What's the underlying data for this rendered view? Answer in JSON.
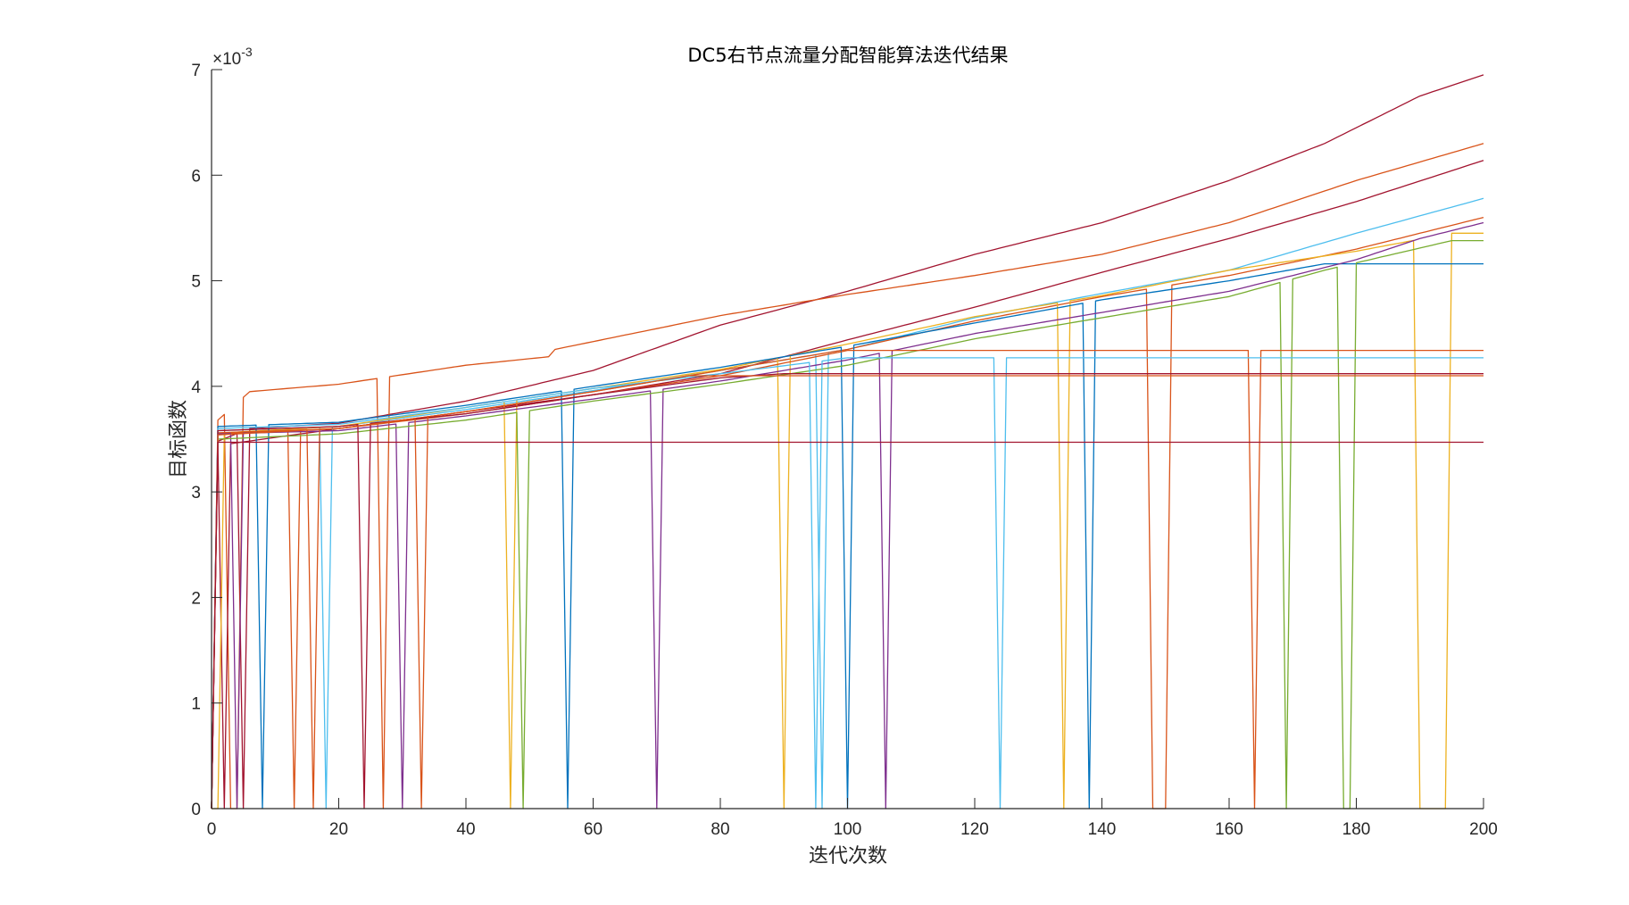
{
  "chart_data": {
    "type": "line",
    "title": "DC5右节点流量分配智能算法迭代结果",
    "xlabel": "迭代次数",
    "ylabel": "目标函数",
    "y_exponent_label": "×10",
    "y_exponent_power": "-3",
    "xlim": [
      0,
      200
    ],
    "ylim": [
      0,
      7
    ],
    "xticks": [
      0,
      20,
      40,
      60,
      80,
      100,
      120,
      140,
      160,
      180,
      200
    ],
    "yticks": [
      0,
      1,
      2,
      3,
      4,
      5,
      6,
      7
    ],
    "grid": false,
    "legend": "none",
    "series": [
      {
        "color": "#A2142F",
        "dropouts": [
          [
            5,
            6
          ]
        ],
        "values": [
          [
            1,
            3.48
          ],
          [
            6,
            3.6
          ],
          [
            20,
            3.65
          ],
          [
            40,
            3.86
          ],
          [
            60,
            4.15
          ],
          [
            80,
            4.58
          ],
          [
            100,
            4.9
          ],
          [
            120,
            5.25
          ],
          [
            140,
            5.55
          ],
          [
            160,
            5.95
          ],
          [
            175,
            6.3
          ],
          [
            190,
            6.75
          ],
          [
            200,
            6.95
          ]
        ]
      },
      {
        "color": "#D95319",
        "dropouts": [
          [
            3,
            5
          ],
          [
            27,
            28
          ]
        ],
        "values": [
          [
            1,
            3.68
          ],
          [
            6,
            3.95
          ],
          [
            20,
            4.02
          ],
          [
            40,
            4.2
          ],
          [
            53,
            4.28
          ],
          [
            54,
            4.35
          ],
          [
            80,
            4.67
          ],
          [
            100,
            4.87
          ],
          [
            120,
            5.05
          ],
          [
            140,
            5.25
          ],
          [
            160,
            5.55
          ],
          [
            180,
            5.95
          ],
          [
            200,
            6.3
          ]
        ]
      },
      {
        "color": "#A2142F",
        "dropouts": [
          [
            2,
            3
          ]
        ],
        "values": [
          [
            1,
            3.44
          ],
          [
            20,
            3.6
          ],
          [
            40,
            3.76
          ],
          [
            60,
            3.92
          ],
          [
            80,
            4.12
          ],
          [
            100,
            4.44
          ],
          [
            120,
            4.75
          ],
          [
            140,
            5.08
          ],
          [
            160,
            5.4
          ],
          [
            180,
            5.75
          ],
          [
            200,
            6.14
          ]
        ]
      },
      {
        "color": "#4DBEEE",
        "dropouts": [
          [
            18,
            19
          ],
          [
            96,
            97
          ]
        ],
        "values": [
          [
            1,
            3.58
          ],
          [
            20,
            3.62
          ],
          [
            40,
            3.78
          ],
          [
            60,
            3.96
          ],
          [
            80,
            4.15
          ],
          [
            100,
            4.35
          ],
          [
            120,
            4.65
          ],
          [
            140,
            4.88
          ],
          [
            160,
            5.1
          ],
          [
            180,
            5.45
          ],
          [
            200,
            5.78
          ]
        ]
      },
      {
        "color": "#D95319",
        "dropouts": [
          [
            13,
            14
          ],
          [
            148,
            151
          ]
        ],
        "values": [
          [
            1,
            3.55
          ],
          [
            20,
            3.6
          ],
          [
            40,
            3.76
          ],
          [
            60,
            3.95
          ],
          [
            80,
            4.15
          ],
          [
            100,
            4.35
          ],
          [
            120,
            4.62
          ],
          [
            140,
            4.85
          ],
          [
            160,
            5.05
          ],
          [
            180,
            5.3
          ],
          [
            200,
            5.6
          ]
        ]
      },
      {
        "color": "#EDB120",
        "dropouts": [
          [
            1,
            2
          ],
          [
            47,
            48
          ],
          [
            90,
            91
          ],
          [
            134,
            135
          ],
          [
            190,
            195
          ]
        ],
        "values": [
          [
            2,
            3.56
          ],
          [
            20,
            3.62
          ],
          [
            40,
            3.8
          ],
          [
            60,
            3.98
          ],
          [
            80,
            4.16
          ],
          [
            100,
            4.4
          ],
          [
            120,
            4.66
          ],
          [
            140,
            4.86
          ],
          [
            160,
            5.1
          ],
          [
            180,
            5.28
          ],
          [
            195,
            5.45
          ],
          [
            200,
            5.45
          ]
        ]
      },
      {
        "color": "#0072BD",
        "dropouts": [
          [
            8,
            9
          ],
          [
            56,
            57
          ],
          [
            100,
            101
          ],
          [
            138,
            139
          ]
        ],
        "values": [
          [
            1,
            3.62
          ],
          [
            20,
            3.66
          ],
          [
            40,
            3.82
          ],
          [
            60,
            4.0
          ],
          [
            80,
            4.18
          ],
          [
            100,
            4.38
          ],
          [
            120,
            4.6
          ],
          [
            140,
            4.82
          ],
          [
            160,
            5.0
          ],
          [
            175,
            5.16
          ],
          [
            200,
            5.16
          ]
        ]
      },
      {
        "color": "#7E2F8E",
        "dropouts": [
          [
            4,
            5
          ],
          [
            30,
            31
          ],
          [
            70,
            71
          ],
          [
            106,
            107
          ]
        ],
        "values": [
          [
            1,
            3.55
          ],
          [
            20,
            3.58
          ],
          [
            40,
            3.72
          ],
          [
            60,
            3.88
          ],
          [
            80,
            4.05
          ],
          [
            100,
            4.25
          ],
          [
            120,
            4.5
          ],
          [
            140,
            4.7
          ],
          [
            160,
            4.9
          ],
          [
            180,
            5.2
          ],
          [
            190,
            5.4
          ],
          [
            200,
            5.55
          ]
        ]
      },
      {
        "color": "#77AC30",
        "dropouts": [
          [
            49,
            50
          ],
          [
            169,
            170
          ],
          [
            178,
            180
          ]
        ],
        "values": [
          [
            1,
            3.5
          ],
          [
            20,
            3.55
          ],
          [
            40,
            3.68
          ],
          [
            60,
            3.86
          ],
          [
            80,
            4.02
          ],
          [
            100,
            4.2
          ],
          [
            120,
            4.45
          ],
          [
            140,
            4.65
          ],
          [
            160,
            4.85
          ],
          [
            175,
            5.1
          ],
          [
            195,
            5.38
          ],
          [
            200,
            5.38
          ]
        ]
      },
      {
        "color": "#D95319",
        "dropouts": [
          [
            16,
            17
          ],
          [
            164,
            165
          ]
        ],
        "values": [
          [
            1,
            3.56
          ],
          [
            20,
            3.6
          ],
          [
            40,
            3.74
          ],
          [
            60,
            3.92
          ],
          [
            80,
            4.1
          ],
          [
            100,
            4.34
          ],
          [
            110,
            4.34
          ],
          [
            200,
            4.34
          ]
        ]
      },
      {
        "color": "#4DBEEE",
        "dropouts": [
          [
            95,
            96
          ],
          [
            124,
            125
          ]
        ],
        "values": [
          [
            1,
            3.6
          ],
          [
            20,
            3.64
          ],
          [
            40,
            3.8
          ],
          [
            60,
            3.98
          ],
          [
            80,
            4.12
          ],
          [
            100,
            4.27
          ],
          [
            200,
            4.27
          ]
        ]
      },
      {
        "color": "#A2142F",
        "dropouts": [
          [
            24,
            25
          ]
        ],
        "values": [
          [
            1,
            3.58
          ],
          [
            20,
            3.62
          ],
          [
            40,
            3.74
          ],
          [
            60,
            3.92
          ],
          [
            80,
            4.08
          ],
          [
            90,
            4.12
          ],
          [
            200,
            4.12
          ]
        ]
      },
      {
        "color": "#D95319",
        "dropouts": [
          [
            33,
            34
          ]
        ],
        "values": [
          [
            1,
            3.54
          ],
          [
            20,
            3.6
          ],
          [
            40,
            3.76
          ],
          [
            60,
            3.95
          ],
          [
            75,
            4.1
          ],
          [
            200,
            4.1
          ]
        ]
      },
      {
        "color": "#A2142F",
        "dropouts": [],
        "values": [
          [
            1,
            3.47
          ],
          [
            200,
            3.47
          ]
        ]
      }
    ]
  }
}
